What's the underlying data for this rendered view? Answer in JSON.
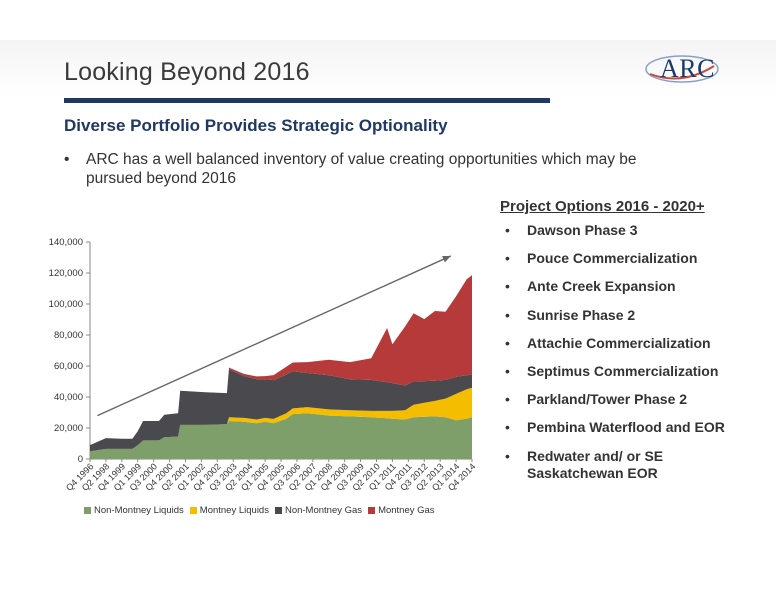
{
  "header": {
    "title": "Looking Beyond 2016",
    "logo_text": "ARC"
  },
  "subtitle": "Diverse Portfolio Provides Strategic Optionality",
  "bullet": {
    "marker": "•",
    "text": "ARC has a well balanced inventory of value creating opportunities which may be pursued beyond 2016"
  },
  "options": {
    "header": "Project Options 2016 - 2020+",
    "marker": "•",
    "items": [
      "Dawson Phase 3",
      "Pouce Commercialization",
      "Ante Creek Expansion",
      "Sunrise Phase 2",
      "Attachie Commercialization",
      "Septimus Commercialization",
      "Parkland/Tower Phase 2",
      "Pembina Waterflood and EOR",
      "Redwater and/ or SE Saskatchewan EOR"
    ]
  },
  "colors": {
    "title_bar": "#1f3864",
    "non_montney_liquids": "#7f9f6a",
    "montney_liquids": "#f5bd00",
    "non_montney_gas": "#4a4a4e",
    "montney_gas": "#b73a3a",
    "trend_arrow": "#666666"
  },
  "chart_data": {
    "type": "area",
    "stacked": true,
    "ylim": [
      0,
      140000
    ],
    "yticks": [
      0,
      20000,
      40000,
      60000,
      80000,
      100000,
      120000,
      140000
    ],
    "ytick_labels": [
      "0",
      "20,000",
      "40,000",
      "60,000",
      "80,000",
      "100,000",
      "120,000",
      "140,000"
    ],
    "x_range": [
      "Q4 1996",
      "Q4 2014"
    ],
    "x_tick_labels": [
      "Q4 1996",
      "Q2 1998",
      "Q4 1999",
      "Q1 1999",
      "Q3 2000",
      "Q4 2000",
      "Q2 2001",
      "Q1 2002",
      "Q4 2002",
      "Q3 2003",
      "Q2 2004",
      "Q1 2005",
      "Q4 2005",
      "Q3 2006",
      "Q2 2007",
      "Q1 2008",
      "Q4 2008",
      "Q3 2009",
      "Q2 2010",
      "Q1 2011",
      "Q4 2011",
      "Q3 2012",
      "Q2 2013",
      "Q1 2014",
      "Q4 2014"
    ],
    "legend_position": "bottom",
    "trend_arrow": true,
    "series": [
      {
        "name": "Non-Montney Liquids",
        "color": "#7f9f6a",
        "values": [
          [
            1996.75,
            5000
          ],
          [
            1997.5,
            6500
          ],
          [
            1998.25,
            6500
          ],
          [
            1998.75,
            6500
          ],
          [
            1999.0,
            9000
          ],
          [
            1999.25,
            12000
          ],
          [
            2000.0,
            12000
          ],
          [
            2000.25,
            14000
          ],
          [
            2000.9,
            14500
          ],
          [
            2001.0,
            22000
          ],
          [
            2002.2,
            22000
          ],
          [
            2003.2,
            22500
          ],
          [
            2003.3,
            24500
          ],
          [
            2004.0,
            24000
          ],
          [
            2004.6,
            23000
          ],
          [
            2005.0,
            24000
          ],
          [
            2005.4,
            23000
          ],
          [
            2006.0,
            26000
          ],
          [
            2006.3,
            29000
          ],
          [
            2007.0,
            29500
          ],
          [
            2008.0,
            28000
          ],
          [
            2009.0,
            27500
          ],
          [
            2010.0,
            27000
          ],
          [
            2011.0,
            26000
          ],
          [
            2011.6,
            25500
          ],
          [
            2012.0,
            27000
          ],
          [
            2013.0,
            27500
          ],
          [
            2013.5,
            27000
          ],
          [
            2014.0,
            25000
          ],
          [
            2014.5,
            26000
          ],
          [
            2014.75,
            27000
          ]
        ]
      },
      {
        "name": "Montney Liquids",
        "color": "#f5bd00",
        "values": [
          [
            1996.75,
            0
          ],
          [
            2003.2,
            0
          ],
          [
            2003.3,
            2500
          ],
          [
            2005.0,
            2500
          ],
          [
            2006.0,
            3500
          ],
          [
            2007.0,
            4000
          ],
          [
            2008.0,
            4000
          ],
          [
            2009.0,
            4000
          ],
          [
            2010.0,
            4000
          ],
          [
            2011.0,
            5000
          ],
          [
            2011.6,
            6000
          ],
          [
            2012.0,
            8000
          ],
          [
            2013.0,
            10000
          ],
          [
            2013.5,
            12000
          ],
          [
            2014.0,
            17000
          ],
          [
            2014.5,
            19000
          ],
          [
            2014.75,
            19000
          ]
        ]
      },
      {
        "name": "Non-Montney Gas",
        "color": "#4a4a4e",
        "values": [
          [
            1996.75,
            4000
          ],
          [
            1997.5,
            7000
          ],
          [
            1998.25,
            6500
          ],
          [
            1998.75,
            6500
          ],
          [
            1999.0,
            9000
          ],
          [
            1999.25,
            12500
          ],
          [
            2000.0,
            12500
          ],
          [
            2000.25,
            14500
          ],
          [
            2000.9,
            15000
          ],
          [
            2001.0,
            22000
          ],
          [
            2002.2,
            21000
          ],
          [
            2003.2,
            20000
          ],
          [
            2003.3,
            31000
          ],
          [
            2004.0,
            27000
          ],
          [
            2004.6,
            26000
          ],
          [
            2005.0,
            25000
          ],
          [
            2005.4,
            25000
          ],
          [
            2006.0,
            25000
          ],
          [
            2006.3,
            24000
          ],
          [
            2007.0,
            22000
          ],
          [
            2008.0,
            22000
          ],
          [
            2009.0,
            20000
          ],
          [
            2010.0,
            20000
          ],
          [
            2011.0,
            18000
          ],
          [
            2011.6,
            16000
          ],
          [
            2012.0,
            15000
          ],
          [
            2013.0,
            13000
          ],
          [
            2013.5,
            12000
          ],
          [
            2014.0,
            11000
          ],
          [
            2014.5,
            9000
          ],
          [
            2014.75,
            8500
          ]
        ]
      },
      {
        "name": "Montney Gas",
        "color": "#b73a3a",
        "values": [
          [
            1996.75,
            0
          ],
          [
            2003.2,
            0
          ],
          [
            2003.3,
            1000
          ],
          [
            2005.0,
            2000
          ],
          [
            2006.0,
            5000
          ],
          [
            2007.0,
            7000
          ],
          [
            2008.0,
            10000
          ],
          [
            2009.0,
            11000
          ],
          [
            2010.0,
            14000
          ],
          [
            2010.75,
            35000
          ],
          [
            2011.0,
            25000
          ],
          [
            2011.6,
            38000
          ],
          [
            2012.0,
            44000
          ],
          [
            2012.5,
            40000
          ],
          [
            2013.0,
            45000
          ],
          [
            2013.5,
            44000
          ],
          [
            2014.0,
            52000
          ],
          [
            2014.5,
            62000
          ],
          [
            2014.75,
            64000
          ]
        ]
      }
    ]
  }
}
